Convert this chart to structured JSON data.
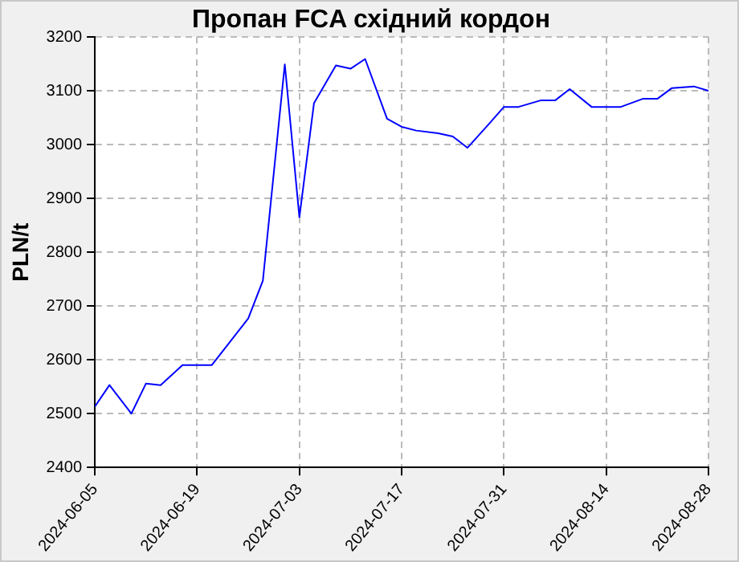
{
  "chart_data": {
    "type": "line",
    "title": "Пропан FCA східний кордон",
    "ylabel": "PLN/t",
    "x": [
      "2024-06-05",
      "2024-06-07",
      "2024-06-10",
      "2024-06-12",
      "2024-06-14",
      "2024-06-17",
      "2024-06-19",
      "2024-06-21",
      "2024-06-26",
      "2024-06-28",
      "2024-07-01",
      "2024-07-03",
      "2024-07-05",
      "2024-07-08",
      "2024-07-10",
      "2024-07-12",
      "2024-07-15",
      "2024-07-17",
      "2024-07-19",
      "2024-07-22",
      "2024-07-24",
      "2024-07-26",
      "2024-07-29",
      "2024-07-31",
      "2024-08-02",
      "2024-08-05",
      "2024-08-07",
      "2024-08-09",
      "2024-08-12",
      "2024-08-14",
      "2024-08-16",
      "2024-08-19",
      "2024-08-21",
      "2024-08-23",
      "2024-08-26",
      "2024-08-28"
    ],
    "series": [
      {
        "color": "#0000ff",
        "values": [
          2513,
          2553,
          2500,
          2556,
          2553,
          2590,
          2590,
          2590,
          2677,
          2747,
          3149,
          2865,
          3077,
          3147,
          3141,
          3159,
          3048,
          3033,
          3026,
          3021,
          3015,
          2994,
          3039,
          3070,
          3070,
          3082,
          3082,
          3103,
          3070,
          3070,
          3070,
          3085,
          3085,
          3105,
          3108,
          3100
        ]
      }
    ],
    "xlim": [
      "2024-06-05",
      "2024-08-28"
    ],
    "xticks": [
      "2024-06-05",
      "2024-06-19",
      "2024-07-03",
      "2024-07-17",
      "2024-07-31",
      "2024-08-14",
      "2024-08-28"
    ],
    "ylim": [
      2400,
      3200
    ],
    "yticks": [
      2400,
      2500,
      2600,
      2700,
      2800,
      2900,
      3000,
      3100,
      3200
    ],
    "grid": true,
    "legend": false,
    "marker": "none",
    "line_style": "solid"
  }
}
